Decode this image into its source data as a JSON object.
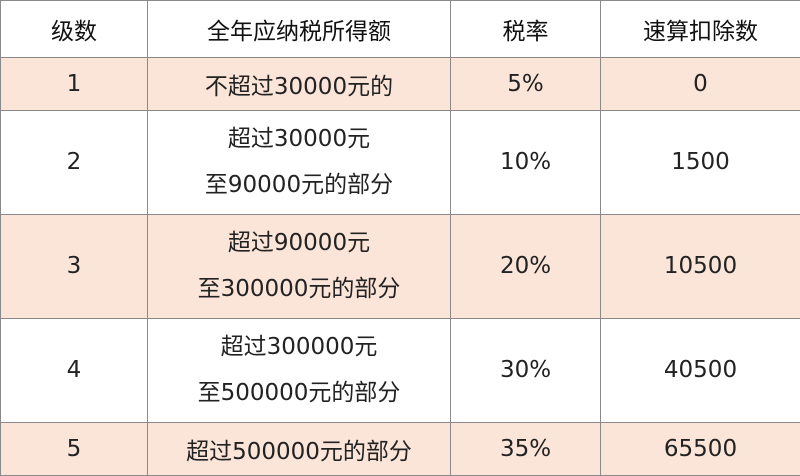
{
  "table": {
    "header": [
      "级数",
      "全年应纳税所得额",
      "税率",
      "速算扣除数"
    ],
    "rows": [
      [
        "1",
        [
          "不超过30000元的"
        ],
        "5%",
        "0"
      ],
      [
        "2",
        [
          "超过30000元",
          "至90000元的部分"
        ],
        "10%",
        "1500"
      ],
      [
        "3",
        [
          "超过90000元",
          "至300000元的部分"
        ],
        "20%",
        "10500"
      ],
      [
        "4",
        [
          "超过300000元",
          "至500000元的部分"
        ],
        "30%",
        "40500"
      ],
      [
        "5",
        [
          "超过500000元的部分"
        ],
        "35%",
        "65500"
      ]
    ]
  }
}
